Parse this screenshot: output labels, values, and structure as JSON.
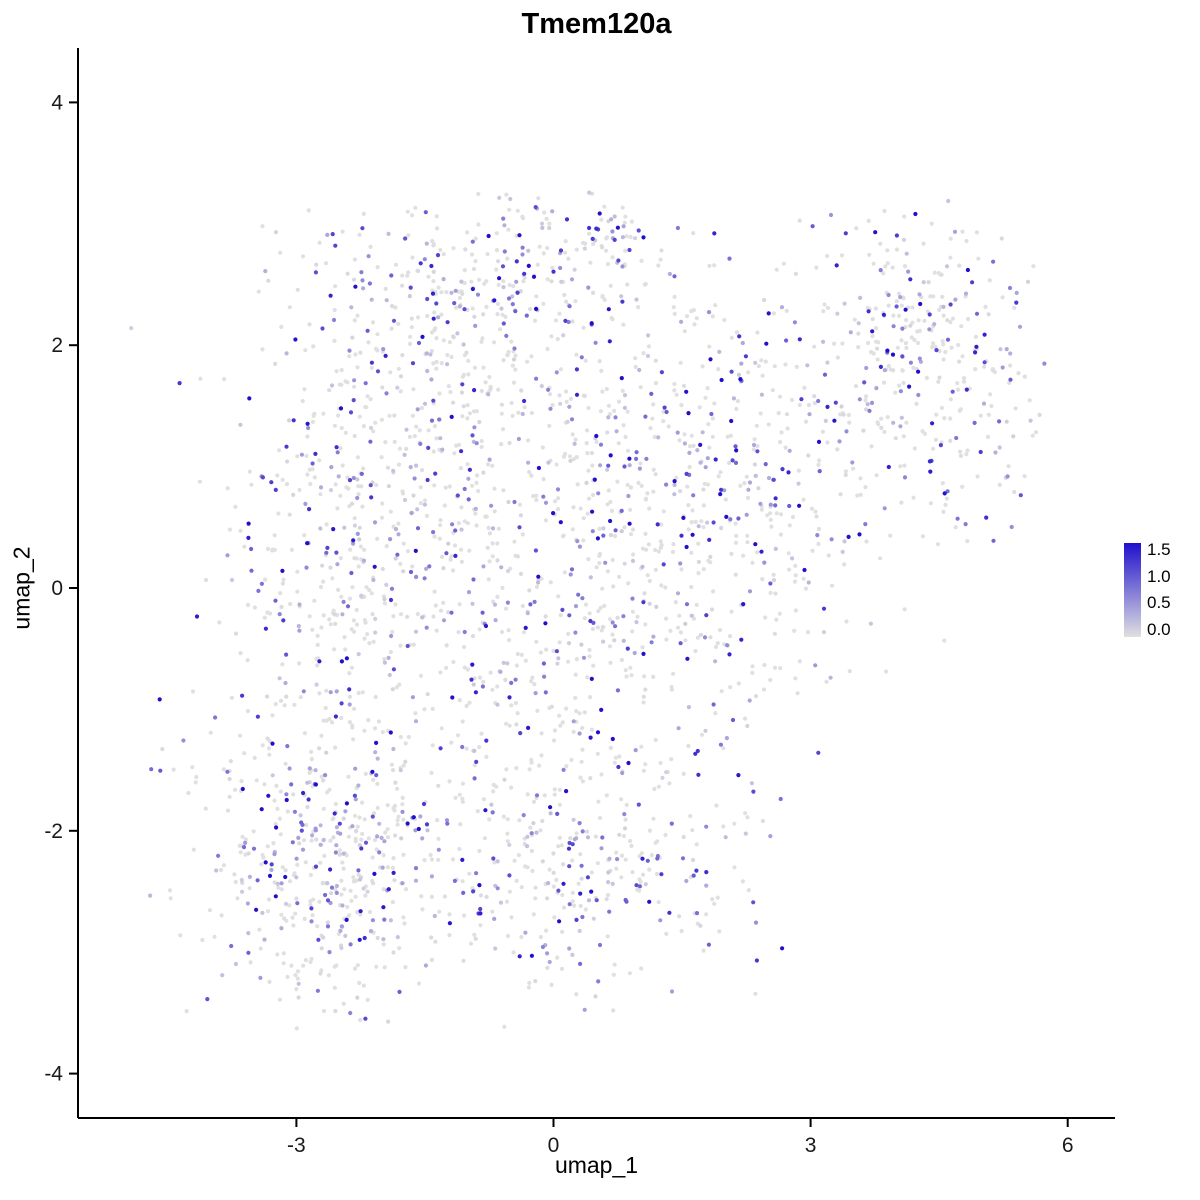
{
  "chart_data": {
    "type": "scatter",
    "title": "Tmem120a",
    "xlabel": "umap_1",
    "ylabel": "umap_2",
    "xlim": [
      -5.5,
      6.5
    ],
    "ylim": [
      -4.4,
      4.4
    ],
    "xticks": [
      -3,
      0,
      3,
      6
    ],
    "yticks": [
      -4,
      -2,
      0,
      2,
      4
    ],
    "grid": false,
    "legend_position": "right",
    "colorbar": {
      "ticks": [
        "1.5",
        "1.0",
        "0.5",
        "0.0"
      ],
      "min": 0.0,
      "max": 1.5,
      "low_color": "#E0E0E0",
      "high_color": "#2010CC"
    },
    "points": {
      "seed": 20240613,
      "radius": 2.1,
      "zero_fraction": 0.5,
      "value_max": 1.8,
      "bounds": {
        "xmin": -5.0,
        "xmax": 5.75,
        "ymin": -3.65,
        "ymax": 3.3
      },
      "clusters": [
        {
          "cx": -2.7,
          "cy": -2.3,
          "sx": 0.75,
          "sy": 0.6,
          "n": 430
        },
        {
          "cx": -4.5,
          "cy": -1.25,
          "sx": 0.18,
          "sy": 0.18,
          "n": 8
        },
        {
          "cx": -2.5,
          "cy": 0.0,
          "sx": 0.7,
          "sy": 0.85,
          "n": 330
        },
        {
          "cx": -1.5,
          "cy": 1.3,
          "sx": 0.8,
          "sy": 0.6,
          "n": 220
        },
        {
          "cx": -1.0,
          "cy": 2.4,
          "sx": 1.1,
          "sy": 0.4,
          "n": 300
        },
        {
          "cx": 0.3,
          "cy": 2.85,
          "sx": 0.5,
          "sy": 0.25,
          "n": 80
        },
        {
          "cx": -0.3,
          "cy": -0.5,
          "sx": 0.9,
          "sy": 0.9,
          "n": 340
        },
        {
          "cx": -0.2,
          "cy": -2.3,
          "sx": 0.85,
          "sy": 0.55,
          "n": 240
        },
        {
          "cx": 0.9,
          "cy": 0.6,
          "sx": 0.8,
          "sy": 0.9,
          "n": 230
        },
        {
          "cx": 2.0,
          "cy": 1.0,
          "sx": 0.8,
          "sy": 0.8,
          "n": 190
        },
        {
          "cx": 3.2,
          "cy": 1.4,
          "sx": 0.8,
          "sy": 0.7,
          "n": 160
        },
        {
          "cx": 4.4,
          "cy": 2.2,
          "sx": 0.6,
          "sy": 0.5,
          "n": 190
        },
        {
          "cx": 4.8,
          "cy": 1.2,
          "sx": 0.45,
          "sy": 0.6,
          "n": 80
        },
        {
          "cx": 2.4,
          "cy": -0.2,
          "sx": 0.6,
          "sy": 0.55,
          "n": 80
        },
        {
          "cx": 1.3,
          "cy": -2.2,
          "sx": 0.6,
          "sy": 0.5,
          "n": 90
        }
      ]
    }
  }
}
